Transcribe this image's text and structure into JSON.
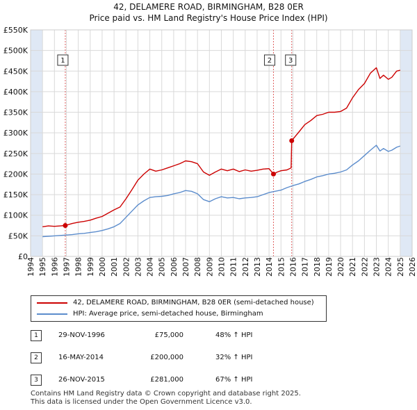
{
  "title_line1": "42, DELAMERE ROAD, BIRMINGHAM, B28 0ER",
  "title_line2": "Price paid vs. HM Land Registry's House Price Index (HPI)",
  "colors": {
    "property": "#cc0000",
    "hpi": "#5b8ccc",
    "shade": "#dfe8f5",
    "grid": "#d9d9d9",
    "marker_line": "#e06060"
  },
  "legend": {
    "property_label": "42, DELAMERE ROAD, BIRMINGHAM, B28 0ER (semi-detached house)",
    "hpi_label": "HPI: Average price, semi-detached house, Birmingham"
  },
  "sales": [
    {
      "num": "1",
      "date": "29-NOV-1996",
      "price": "£75,000",
      "hpi": "48% ↑ HPI"
    },
    {
      "num": "2",
      "date": "16-MAY-2014",
      "price": "£200,000",
      "hpi": "32% ↑ HPI"
    },
    {
      "num": "3",
      "date": "26-NOV-2015",
      "price": "£281,000",
      "hpi": "67% ↑ HPI"
    }
  ],
  "footer_line1": "Contains HM Land Registry data © Crown copyright and database right 2025.",
  "footer_line2": "This data is licensed under the Open Government Licence v3.0.",
  "chart_data": {
    "type": "line",
    "xlim": [
      1994,
      2026
    ],
    "ylim": [
      0,
      550000
    ],
    "x_ticks": [
      "1994",
      "1995",
      "1996",
      "1997",
      "1998",
      "1999",
      "2000",
      "2001",
      "2002",
      "2003",
      "2004",
      "2005",
      "2006",
      "2007",
      "2008",
      "2009",
      "2010",
      "2011",
      "2012",
      "2013",
      "2014",
      "2015",
      "2016",
      "2017",
      "2018",
      "2019",
      "2020",
      "2021",
      "2022",
      "2023",
      "2024",
      "2025",
      "2026"
    ],
    "y_ticks": [
      {
        "value": 0,
        "label": "£0"
      },
      {
        "value": 50000,
        "label": "£50K"
      },
      {
        "value": 100000,
        "label": "£100K"
      },
      {
        "value": 150000,
        "label": "£150K"
      },
      {
        "value": 200000,
        "label": "£200K"
      },
      {
        "value": 250000,
        "label": "£250K"
      },
      {
        "value": 300000,
        "label": "£300K"
      },
      {
        "value": 350000,
        "label": "£350K"
      },
      {
        "value": 400000,
        "label": "£400K"
      },
      {
        "value": 450000,
        "label": "£450K"
      },
      {
        "value": 500000,
        "label": "£500K"
      },
      {
        "value": 550000,
        "label": "£550K"
      }
    ],
    "shaded_ranges": [
      [
        1994,
        1995
      ],
      [
        2025,
        2026
      ]
    ],
    "sale_markers": [
      {
        "label": "1",
        "x": 1996.91,
        "y": 75000
      },
      {
        "label": "2",
        "x": 2014.37,
        "y": 200000
      },
      {
        "label": "3",
        "x": 2015.9,
        "y": 281000
      }
    ],
    "series": [
      {
        "name": "42, DELAMERE ROAD, BIRMINGHAM, B28 0ER (semi-detached house)",
        "color": "#cc0000",
        "x": [
          1995.0,
          1995.5,
          1996.0,
          1996.5,
          1996.91,
          1997.5,
          1998.0,
          1998.5,
          1999.0,
          1999.5,
          2000.0,
          2000.5,
          2001.0,
          2001.5,
          2002.0,
          2002.5,
          2003.0,
          2003.5,
          2004.0,
          2004.5,
          2005.0,
          2005.5,
          2006.0,
          2006.5,
          2007.0,
          2007.5,
          2008.0,
          2008.5,
          2009.0,
          2009.5,
          2010.0,
          2010.5,
          2011.0,
          2011.5,
          2012.0,
          2012.5,
          2013.0,
          2013.5,
          2014.0,
          2014.37,
          2014.7,
          2015.0,
          2015.5,
          2015.85,
          2015.9,
          2016.5,
          2017.0,
          2017.5,
          2018.0,
          2018.5,
          2019.0,
          2019.5,
          2020.0,
          2020.5,
          2021.0,
          2021.5,
          2022.0,
          2022.5,
          2023.0,
          2023.3,
          2023.6,
          2024.0,
          2024.3,
          2024.7,
          2025.0
        ],
        "y": [
          72000,
          74000,
          73000,
          74000,
          75000,
          80000,
          83000,
          85000,
          88000,
          93000,
          97000,
          105000,
          113000,
          120000,
          140000,
          162000,
          185000,
          200000,
          212000,
          207000,
          210000,
          215000,
          220000,
          225000,
          232000,
          230000,
          225000,
          205000,
          197000,
          205000,
          212000,
          208000,
          212000,
          206000,
          210000,
          207000,
          209000,
          212000,
          213000,
          200000,
          205000,
          208000,
          210000,
          215000,
          281000,
          302000,
          320000,
          330000,
          342000,
          345000,
          350000,
          350000,
          352000,
          360000,
          385000,
          405000,
          420000,
          445000,
          458000,
          432000,
          440000,
          430000,
          435000,
          450000,
          452000
        ]
      },
      {
        "name": "HPI: Average price, semi-detached house, Birmingham",
        "color": "#5b8ccc",
        "x": [
          1995.0,
          1995.5,
          1996.0,
          1996.5,
          1997.0,
          1997.5,
          1998.0,
          1998.5,
          1999.0,
          1999.5,
          2000.0,
          2000.5,
          2001.0,
          2001.5,
          2002.0,
          2002.5,
          2003.0,
          2003.5,
          2004.0,
          2004.5,
          2005.0,
          2005.5,
          2006.0,
          2006.5,
          2007.0,
          2007.5,
          2008.0,
          2008.5,
          2009.0,
          2009.5,
          2010.0,
          2010.5,
          2011.0,
          2011.5,
          2012.0,
          2012.5,
          2013.0,
          2013.5,
          2014.0,
          2014.5,
          2015.0,
          2015.5,
          2016.0,
          2016.5,
          2017.0,
          2017.5,
          2018.0,
          2018.5,
          2019.0,
          2019.5,
          2020.0,
          2020.5,
          2021.0,
          2021.5,
          2022.0,
          2022.5,
          2023.0,
          2023.3,
          2023.6,
          2024.0,
          2024.3,
          2024.7,
          2025.0
        ],
        "y": [
          48000,
          49000,
          50000,
          51000,
          52000,
          53000,
          55000,
          56000,
          58000,
          60000,
          63000,
          67000,
          72000,
          80000,
          95000,
          110000,
          125000,
          135000,
          143000,
          145000,
          146000,
          148000,
          152000,
          155000,
          160000,
          158000,
          152000,
          138000,
          133000,
          140000,
          145000,
          142000,
          143000,
          140000,
          142000,
          143000,
          145000,
          150000,
          155000,
          158000,
          161000,
          167000,
          172000,
          176000,
          182000,
          187000,
          193000,
          196000,
          200000,
          202000,
          205000,
          210000,
          222000,
          232000,
          245000,
          258000,
          270000,
          256000,
          262000,
          255000,
          258000,
          265000,
          268000
        ]
      }
    ]
  }
}
